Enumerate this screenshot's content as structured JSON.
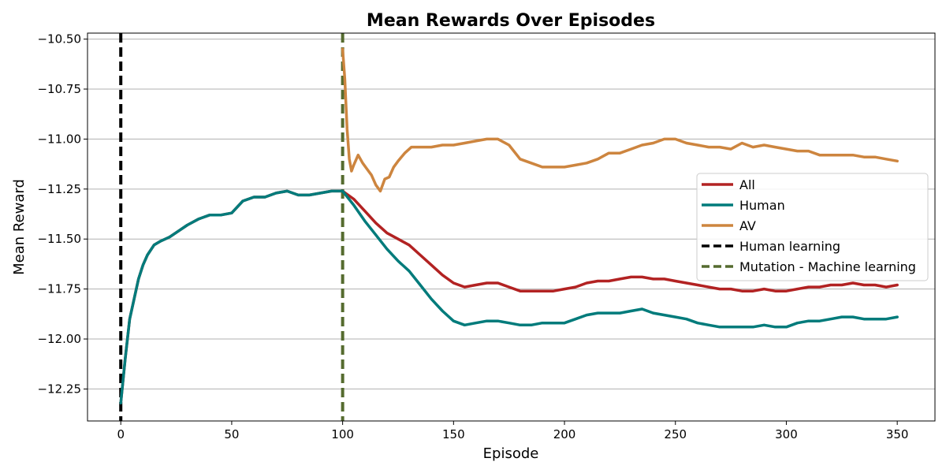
{
  "chart_data": {
    "type": "line",
    "title": "Mean Rewards Over Episodes",
    "xlabel": "Episode",
    "ylabel": "Mean Reward",
    "xlim": [
      -15,
      367
    ],
    "ylim": [
      -12.41,
      -10.47
    ],
    "x_ticks": [
      0,
      50,
      100,
      150,
      200,
      250,
      300,
      350
    ],
    "x_tick_labels": [
      "0",
      "50",
      "100",
      "150",
      "200",
      "250",
      "300",
      "350"
    ],
    "y_ticks": [
      -10.5,
      -10.75,
      -11.0,
      -11.25,
      -11.5,
      -11.75,
      -12.0,
      -12.25
    ],
    "y_tick_labels": [
      "−10.50",
      "−10.75",
      "−11.00",
      "−11.25",
      "−11.50",
      "−11.75",
      "−12.00",
      "−12.25"
    ],
    "grid": "horizontal",
    "legend_position": "center-right",
    "series": [
      {
        "name": "All",
        "color": "#b22222",
        "x": [
          0,
          2,
          4,
          6,
          8,
          10,
          12,
          15,
          18,
          22,
          26,
          30,
          35,
          40,
          45,
          50,
          55,
          60,
          65,
          70,
          75,
          80,
          85,
          90,
          95,
          100,
          105,
          110,
          115,
          120,
          125,
          130,
          135,
          140,
          145,
          150,
          155,
          160,
          165,
          170,
          175,
          180,
          185,
          190,
          195,
          200,
          205,
          210,
          215,
          220,
          225,
          230,
          235,
          240,
          245,
          250,
          255,
          260,
          265,
          270,
          275,
          280,
          285,
          290,
          295,
          300,
          305,
          310,
          315,
          320,
          325,
          330,
          335,
          340,
          345,
          350
        ],
        "values": [
          -12.32,
          -12.1,
          -11.9,
          -11.8,
          -11.7,
          -11.63,
          -11.58,
          -11.53,
          -11.51,
          -11.49,
          -11.46,
          -11.43,
          -11.4,
          -11.38,
          -11.38,
          -11.37,
          -11.31,
          -11.29,
          -11.29,
          -11.27,
          -11.26,
          -11.28,
          -11.28,
          -11.27,
          -11.26,
          -11.26,
          -11.3,
          -11.36,
          -11.42,
          -11.47,
          -11.5,
          -11.53,
          -11.58,
          -11.63,
          -11.68,
          -11.72,
          -11.74,
          -11.73,
          -11.72,
          -11.72,
          -11.74,
          -11.76,
          -11.76,
          -11.76,
          -11.76,
          -11.75,
          -11.74,
          -11.72,
          -11.71,
          -11.71,
          -11.7,
          -11.69,
          -11.69,
          -11.7,
          -11.7,
          -11.71,
          -11.72,
          -11.73,
          -11.74,
          -11.75,
          -11.75,
          -11.76,
          -11.76,
          -11.75,
          -11.76,
          -11.76,
          -11.75,
          -11.74,
          -11.74,
          -11.73,
          -11.73,
          -11.72,
          -11.73,
          -11.73,
          -11.74,
          -11.73
        ]
      },
      {
        "name": "Human",
        "color": "#007b7b",
        "x": [
          0,
          2,
          4,
          6,
          8,
          10,
          12,
          15,
          18,
          22,
          26,
          30,
          35,
          40,
          45,
          50,
          55,
          60,
          65,
          70,
          75,
          80,
          85,
          90,
          95,
          100,
          105,
          110,
          115,
          120,
          125,
          130,
          135,
          140,
          145,
          150,
          155,
          160,
          165,
          170,
          175,
          180,
          185,
          190,
          195,
          200,
          205,
          210,
          215,
          220,
          225,
          230,
          235,
          240,
          245,
          250,
          255,
          260,
          265,
          270,
          275,
          280,
          285,
          290,
          295,
          300,
          305,
          310,
          315,
          320,
          325,
          330,
          335,
          340,
          345,
          350
        ],
        "values": [
          -12.32,
          -12.1,
          -11.9,
          -11.8,
          -11.7,
          -11.63,
          -11.58,
          -11.53,
          -11.51,
          -11.49,
          -11.46,
          -11.43,
          -11.4,
          -11.38,
          -11.38,
          -11.37,
          -11.31,
          -11.29,
          -11.29,
          -11.27,
          -11.26,
          -11.28,
          -11.28,
          -11.27,
          -11.26,
          -11.26,
          -11.33,
          -11.41,
          -11.48,
          -11.55,
          -11.61,
          -11.66,
          -11.73,
          -11.8,
          -11.86,
          -11.91,
          -11.93,
          -11.92,
          -11.91,
          -11.91,
          -11.92,
          -11.93,
          -11.93,
          -11.92,
          -11.92,
          -11.92,
          -11.9,
          -11.88,
          -11.87,
          -11.87,
          -11.87,
          -11.86,
          -11.85,
          -11.87,
          -11.88,
          -11.89,
          -11.9,
          -11.92,
          -11.93,
          -11.94,
          -11.94,
          -11.94,
          -11.94,
          -11.93,
          -11.94,
          -11.94,
          -11.92,
          -11.91,
          -11.91,
          -11.9,
          -11.89,
          -11.89,
          -11.9,
          -11.9,
          -11.9,
          -11.89
        ]
      },
      {
        "name": "AV",
        "color": "#cd853f",
        "x": [
          100,
          101,
          102,
          103,
          104,
          105,
          107,
          109,
          111,
          113,
          115,
          117,
          119,
          121,
          123,
          125,
          128,
          131,
          134,
          137,
          140,
          145,
          150,
          155,
          160,
          165,
          170,
          175,
          180,
          185,
          190,
          195,
          200,
          205,
          210,
          215,
          220,
          225,
          230,
          235,
          240,
          245,
          250,
          255,
          260,
          265,
          270,
          275,
          280,
          285,
          290,
          295,
          300,
          305,
          310,
          315,
          320,
          325,
          330,
          335,
          340,
          345,
          350
        ],
        "values": [
          -10.55,
          -10.7,
          -10.95,
          -11.1,
          -11.16,
          -11.13,
          -11.08,
          -11.12,
          -11.15,
          -11.18,
          -11.23,
          -11.26,
          -11.2,
          -11.19,
          -11.14,
          -11.11,
          -11.07,
          -11.04,
          -11.04,
          -11.04,
          -11.04,
          -11.03,
          -11.03,
          -11.02,
          -11.01,
          -11.0,
          -11.0,
          -11.03,
          -11.1,
          -11.12,
          -11.14,
          -11.14,
          -11.14,
          -11.13,
          -11.12,
          -11.1,
          -11.07,
          -11.07,
          -11.05,
          -11.03,
          -11.02,
          -11.0,
          -11.0,
          -11.02,
          -11.03,
          -11.04,
          -11.04,
          -11.05,
          -11.02,
          -11.04,
          -11.03,
          -11.04,
          -11.05,
          -11.06,
          -11.06,
          -11.08,
          -11.08,
          -11.08,
          -11.08,
          -11.09,
          -11.09,
          -11.1,
          -11.11
        ]
      }
    ],
    "vlines": [
      {
        "name": "Human learning",
        "x": 0,
        "color": "#000000",
        "style": "dashed"
      },
      {
        "name": "Mutation - Machine learning",
        "x": 100,
        "color": "#556b2f",
        "style": "dashed"
      }
    ],
    "legend": [
      {
        "label": "All",
        "color": "#b22222",
        "style": "solid"
      },
      {
        "label": "Human",
        "color": "#007b7b",
        "style": "solid"
      },
      {
        "label": "AV",
        "color": "#cd853f",
        "style": "solid"
      },
      {
        "label": "Human learning",
        "color": "#000000",
        "style": "dashed"
      },
      {
        "label": "Mutation - Machine learning",
        "color": "#556b2f",
        "style": "dashed"
      }
    ]
  }
}
